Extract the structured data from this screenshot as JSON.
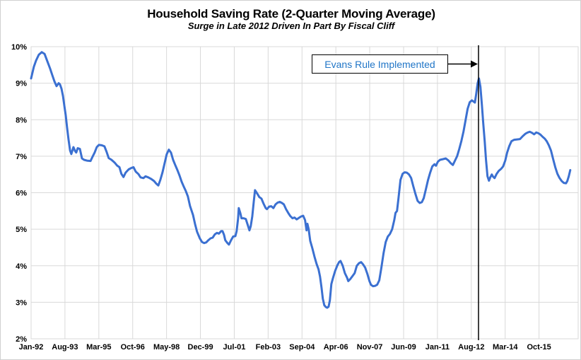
{
  "chart_data": {
    "type": "line",
    "title": "Household Saving Rate (2-Quarter Moving Average)",
    "subtitle": "Surge in Late 2012 Driven In Part By Fiscal Cliff",
    "legend": "none",
    "grid": true,
    "line_color": "#3B70D1",
    "grid_color": "#D9D9D9",
    "x_axis": {
      "min": 1992.0,
      "max": 2017.58,
      "tick_years": [
        1992.0,
        1993.583,
        1995.167,
        1996.75,
        1998.333,
        1999.917,
        2001.5,
        2003.083,
        2004.667,
        2006.25,
        2007.833,
        2009.417,
        2011.0,
        2012.583,
        2014.167,
        2015.75
      ],
      "tick_labels": [
        "Jan-92",
        "Aug-93",
        "Mar-95",
        "Oct-96",
        "May-98",
        "Dec-99",
        "Jul-01",
        "Feb-03",
        "Sep-04",
        "Apr-06",
        "Nov-07",
        "Jun-09",
        "Jan-11",
        "Aug-12",
        "Mar-14",
        "Oct-15"
      ]
    },
    "y_axis": {
      "min": 2,
      "max": 10,
      "tick_step": 1,
      "tick_labels": [
        "2%",
        "3%",
        "4%",
        "5%",
        "6%",
        "7%",
        "8%",
        "9%",
        "10%"
      ]
    },
    "annotation": {
      "label": "Evans Rule Implemented",
      "text_color": "#2176C7",
      "line_year": 2012.92
    },
    "series": [
      {
        "name": "Household Saving Rate (2-Quarter Moving Average)",
        "points": [
          [
            1992.0,
            9.13
          ],
          [
            1992.13,
            9.45
          ],
          [
            1992.23,
            9.62
          ],
          [
            1992.36,
            9.78
          ],
          [
            1992.5,
            9.85
          ],
          [
            1992.63,
            9.8
          ],
          [
            1992.76,
            9.6
          ],
          [
            1992.89,
            9.4
          ],
          [
            1992.99,
            9.22
          ],
          [
            1993.09,
            9.05
          ],
          [
            1993.19,
            8.92
          ],
          [
            1993.29,
            9.0
          ],
          [
            1993.35,
            8.97
          ],
          [
            1993.42,
            8.85
          ],
          [
            1993.49,
            8.65
          ],
          [
            1993.55,
            8.4
          ],
          [
            1993.62,
            8.12
          ],
          [
            1993.68,
            7.8
          ],
          [
            1993.75,
            7.45
          ],
          [
            1993.82,
            7.16
          ],
          [
            1993.88,
            7.06
          ],
          [
            1993.98,
            7.25
          ],
          [
            1994.05,
            7.15
          ],
          [
            1994.11,
            7.1
          ],
          [
            1994.18,
            7.22
          ],
          [
            1994.28,
            7.2
          ],
          [
            1994.38,
            6.94
          ],
          [
            1994.48,
            6.9
          ],
          [
            1994.61,
            6.88
          ],
          [
            1994.78,
            6.87
          ],
          [
            1994.87,
            6.98
          ],
          [
            1994.97,
            7.1
          ],
          [
            1995.07,
            7.25
          ],
          [
            1995.17,
            7.31
          ],
          [
            1995.3,
            7.3
          ],
          [
            1995.43,
            7.27
          ],
          [
            1995.53,
            7.12
          ],
          [
            1995.63,
            6.95
          ],
          [
            1995.76,
            6.9
          ],
          [
            1995.9,
            6.83
          ],
          [
            1996.03,
            6.74
          ],
          [
            1996.13,
            6.7
          ],
          [
            1996.22,
            6.52
          ],
          [
            1996.32,
            6.43
          ],
          [
            1996.42,
            6.55
          ],
          [
            1996.56,
            6.64
          ],
          [
            1996.69,
            6.68
          ],
          [
            1996.79,
            6.7
          ],
          [
            1996.89,
            6.58
          ],
          [
            1997.02,
            6.51
          ],
          [
            1997.12,
            6.42
          ],
          [
            1997.25,
            6.4
          ],
          [
            1997.35,
            6.45
          ],
          [
            1997.48,
            6.42
          ],
          [
            1997.61,
            6.38
          ],
          [
            1997.75,
            6.32
          ],
          [
            1997.85,
            6.25
          ],
          [
            1997.95,
            6.2
          ],
          [
            1998.04,
            6.35
          ],
          [
            1998.14,
            6.55
          ],
          [
            1998.24,
            6.8
          ],
          [
            1998.34,
            7.05
          ],
          [
            1998.44,
            7.18
          ],
          [
            1998.54,
            7.1
          ],
          [
            1998.64,
            6.9
          ],
          [
            1998.74,
            6.76
          ],
          [
            1998.84,
            6.62
          ],
          [
            1998.94,
            6.47
          ],
          [
            1999.04,
            6.3
          ],
          [
            1999.13,
            6.18
          ],
          [
            1999.23,
            6.05
          ],
          [
            1999.33,
            5.9
          ],
          [
            1999.43,
            5.64
          ],
          [
            1999.57,
            5.39
          ],
          [
            1999.67,
            5.13
          ],
          [
            1999.76,
            4.93
          ],
          [
            1999.89,
            4.75
          ],
          [
            1999.99,
            4.65
          ],
          [
            2000.09,
            4.62
          ],
          [
            2000.19,
            4.64
          ],
          [
            2000.29,
            4.7
          ],
          [
            2000.39,
            4.75
          ],
          [
            2000.49,
            4.77
          ],
          [
            2000.59,
            4.86
          ],
          [
            2000.69,
            4.9
          ],
          [
            2000.78,
            4.88
          ],
          [
            2000.89,
            4.95
          ],
          [
            2000.95,
            4.95
          ],
          [
            2001.02,
            4.85
          ],
          [
            2001.08,
            4.7
          ],
          [
            2001.18,
            4.62
          ],
          [
            2001.25,
            4.58
          ],
          [
            2001.35,
            4.7
          ],
          [
            2001.45,
            4.8
          ],
          [
            2001.55,
            4.81
          ],
          [
            2001.61,
            4.95
          ],
          [
            2001.68,
            5.3
          ],
          [
            2001.71,
            5.58
          ],
          [
            2001.78,
            5.45
          ],
          [
            2001.84,
            5.3
          ],
          [
            2001.94,
            5.3
          ],
          [
            2002.04,
            5.28
          ],
          [
            2002.14,
            5.1
          ],
          [
            2002.21,
            4.97
          ],
          [
            2002.27,
            5.08
          ],
          [
            2002.34,
            5.35
          ],
          [
            2002.41,
            5.75
          ],
          [
            2002.47,
            6.07
          ],
          [
            2002.57,
            5.98
          ],
          [
            2002.67,
            5.88
          ],
          [
            2002.77,
            5.84
          ],
          [
            2002.87,
            5.7
          ],
          [
            2002.97,
            5.58
          ],
          [
            2003.03,
            5.55
          ],
          [
            2003.13,
            5.62
          ],
          [
            2003.23,
            5.63
          ],
          [
            2003.33,
            5.58
          ],
          [
            2003.43,
            5.68
          ],
          [
            2003.53,
            5.73
          ],
          [
            2003.63,
            5.75
          ],
          [
            2003.73,
            5.72
          ],
          [
            2003.82,
            5.68
          ],
          [
            2003.92,
            5.55
          ],
          [
            2004.02,
            5.45
          ],
          [
            2004.12,
            5.36
          ],
          [
            2004.22,
            5.3
          ],
          [
            2004.32,
            5.32
          ],
          [
            2004.42,
            5.27
          ],
          [
            2004.52,
            5.31
          ],
          [
            2004.62,
            5.35
          ],
          [
            2004.72,
            5.37
          ],
          [
            2004.81,
            5.25
          ],
          [
            2004.88,
            4.97
          ],
          [
            2004.92,
            5.15
          ],
          [
            2004.98,
            5.0
          ],
          [
            2005.05,
            4.68
          ],
          [
            2005.15,
            4.48
          ],
          [
            2005.25,
            4.25
          ],
          [
            2005.35,
            4.05
          ],
          [
            2005.44,
            3.9
          ],
          [
            2005.51,
            3.7
          ],
          [
            2005.58,
            3.4
          ],
          [
            2005.64,
            3.1
          ],
          [
            2005.71,
            2.92
          ],
          [
            2005.78,
            2.87
          ],
          [
            2005.84,
            2.85
          ],
          [
            2005.91,
            2.88
          ],
          [
            2005.97,
            3.05
          ],
          [
            2006.04,
            3.5
          ],
          [
            2006.11,
            3.65
          ],
          [
            2006.21,
            3.85
          ],
          [
            2006.31,
            4.0
          ],
          [
            2006.4,
            4.1
          ],
          [
            2006.47,
            4.13
          ],
          [
            2006.57,
            4.0
          ],
          [
            2006.67,
            3.8
          ],
          [
            2006.77,
            3.68
          ],
          [
            2006.83,
            3.58
          ],
          [
            2006.93,
            3.64
          ],
          [
            2007.03,
            3.72
          ],
          [
            2007.13,
            3.8
          ],
          [
            2007.23,
            4.0
          ],
          [
            2007.33,
            4.07
          ],
          [
            2007.43,
            4.1
          ],
          [
            2007.52,
            4.04
          ],
          [
            2007.62,
            3.95
          ],
          [
            2007.72,
            3.78
          ],
          [
            2007.82,
            3.58
          ],
          [
            2007.89,
            3.48
          ],
          [
            2007.99,
            3.44
          ],
          [
            2008.09,
            3.45
          ],
          [
            2008.18,
            3.48
          ],
          [
            2008.28,
            3.6
          ],
          [
            2008.38,
            3.95
          ],
          [
            2008.48,
            4.35
          ],
          [
            2008.58,
            4.65
          ],
          [
            2008.68,
            4.8
          ],
          [
            2008.78,
            4.87
          ],
          [
            2008.88,
            5.0
          ],
          [
            2008.98,
            5.25
          ],
          [
            2009.04,
            5.45
          ],
          [
            2009.11,
            5.5
          ],
          [
            2009.18,
            5.85
          ],
          [
            2009.27,
            6.35
          ],
          [
            2009.37,
            6.52
          ],
          [
            2009.47,
            6.56
          ],
          [
            2009.57,
            6.55
          ],
          [
            2009.67,
            6.5
          ],
          [
            2009.77,
            6.4
          ],
          [
            2009.87,
            6.18
          ],
          [
            2009.97,
            5.97
          ],
          [
            2010.07,
            5.78
          ],
          [
            2010.17,
            5.72
          ],
          [
            2010.27,
            5.74
          ],
          [
            2010.36,
            5.85
          ],
          [
            2010.46,
            6.1
          ],
          [
            2010.56,
            6.35
          ],
          [
            2010.66,
            6.55
          ],
          [
            2010.76,
            6.72
          ],
          [
            2010.86,
            6.78
          ],
          [
            2010.93,
            6.74
          ],
          [
            2011.02,
            6.85
          ],
          [
            2011.12,
            6.9
          ],
          [
            2011.26,
            6.92
          ],
          [
            2011.39,
            6.94
          ],
          [
            2011.52,
            6.88
          ],
          [
            2011.62,
            6.81
          ],
          [
            2011.72,
            6.76
          ],
          [
            2011.82,
            6.88
          ],
          [
            2011.92,
            7.0
          ],
          [
            2012.02,
            7.2
          ],
          [
            2012.12,
            7.42
          ],
          [
            2012.22,
            7.68
          ],
          [
            2012.32,
            8.0
          ],
          [
            2012.41,
            8.3
          ],
          [
            2012.51,
            8.48
          ],
          [
            2012.61,
            8.53
          ],
          [
            2012.68,
            8.5
          ],
          [
            2012.75,
            8.47
          ],
          [
            2012.81,
            8.7
          ],
          [
            2012.88,
            9.0
          ],
          [
            2012.94,
            9.13
          ],
          [
            2013.01,
            8.9
          ],
          [
            2013.08,
            8.4
          ],
          [
            2013.14,
            7.9
          ],
          [
            2013.21,
            7.4
          ],
          [
            2013.27,
            6.9
          ],
          [
            2013.34,
            6.45
          ],
          [
            2013.41,
            6.33
          ],
          [
            2013.47,
            6.42
          ],
          [
            2013.54,
            6.5
          ],
          [
            2013.6,
            6.44
          ],
          [
            2013.67,
            6.4
          ],
          [
            2013.77,
            6.52
          ],
          [
            2013.87,
            6.6
          ],
          [
            2013.97,
            6.65
          ],
          [
            2014.07,
            6.72
          ],
          [
            2014.17,
            6.88
          ],
          [
            2014.26,
            7.1
          ],
          [
            2014.36,
            7.28
          ],
          [
            2014.46,
            7.41
          ],
          [
            2014.59,
            7.45
          ],
          [
            2014.73,
            7.46
          ],
          [
            2014.86,
            7.47
          ],
          [
            2014.99,
            7.55
          ],
          [
            2015.12,
            7.62
          ],
          [
            2015.22,
            7.65
          ],
          [
            2015.32,
            7.67
          ],
          [
            2015.42,
            7.64
          ],
          [
            2015.52,
            7.6
          ],
          [
            2015.62,
            7.65
          ],
          [
            2015.72,
            7.63
          ],
          [
            2015.82,
            7.59
          ],
          [
            2015.92,
            7.53
          ],
          [
            2016.02,
            7.48
          ],
          [
            2016.11,
            7.41
          ],
          [
            2016.21,
            7.3
          ],
          [
            2016.31,
            7.15
          ],
          [
            2016.41,
            6.92
          ],
          [
            2016.51,
            6.7
          ],
          [
            2016.61,
            6.52
          ],
          [
            2016.71,
            6.4
          ],
          [
            2016.81,
            6.32
          ],
          [
            2016.91,
            6.27
          ],
          [
            2017.01,
            6.26
          ],
          [
            2017.07,
            6.32
          ],
          [
            2017.14,
            6.45
          ],
          [
            2017.21,
            6.62
          ]
        ]
      }
    ]
  }
}
